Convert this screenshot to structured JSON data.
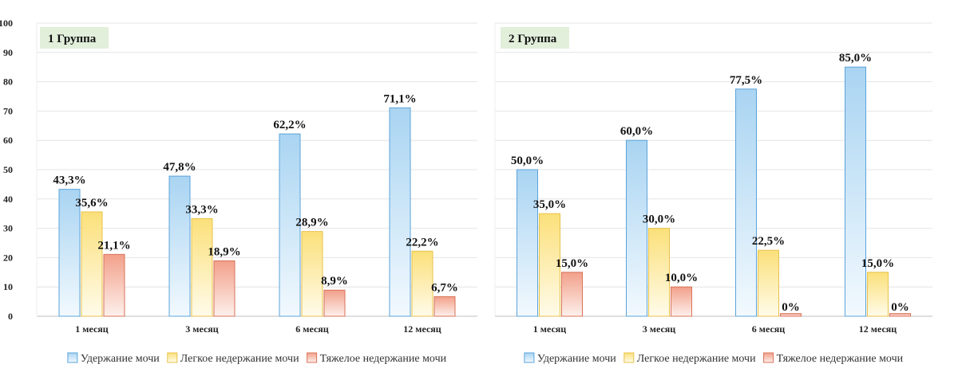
{
  "chart_data": [
    {
      "type": "bar",
      "title": "1 Группа",
      "categories": [
        "1 месяц",
        "3 месяц",
        "6 месяц",
        "12 месяц"
      ],
      "series": [
        {
          "name": "Удержание мочи",
          "values": [
            43.3,
            47.8,
            62.2,
            71.1
          ],
          "labels": [
            "43,3%",
            "47,8%",
            "62,2%",
            "71,1%"
          ]
        },
        {
          "name": "Легкое недержание мочи",
          "values": [
            35.6,
            33.3,
            28.9,
            22.2
          ],
          "labels": [
            "35,6%",
            "33,3%",
            "28,9%",
            "22,2%"
          ]
        },
        {
          "name": "Тяжелое недержание мочи",
          "values": [
            21.1,
            18.9,
            8.9,
            6.7
          ],
          "labels": [
            "21,1%",
            "18,9%",
            "8,9%",
            "6,7%"
          ]
        }
      ],
      "ylim": [
        0,
        100
      ],
      "yticks": [
        "0",
        "10",
        "20",
        "30",
        "40",
        "50",
        "60",
        "70",
        "80",
        "90",
        "100"
      ],
      "grid": true,
      "legend": "bottom"
    },
    {
      "type": "bar",
      "title": "2 Группа",
      "categories": [
        "1 месяц",
        "3 месяц",
        "6 месяц",
        "12 месяц"
      ],
      "series": [
        {
          "name": "Удержание мочи",
          "values": [
            50.0,
            60.0,
            77.5,
            85.0
          ],
          "labels": [
            "50,0%",
            "60,0%",
            "77,5%",
            "85,0%"
          ]
        },
        {
          "name": "Легкое недержание мочи",
          "values": [
            35.0,
            30.0,
            22.5,
            15.0
          ],
          "labels": [
            "35,0%",
            "30,0%",
            "22,5%",
            "15,0%"
          ]
        },
        {
          "name": "Тяжелое недержание мочи",
          "values": [
            15.0,
            10.0,
            0,
            0
          ],
          "labels": [
            "15,0%",
            "10,0%",
            "0%",
            "0%"
          ]
        }
      ],
      "ylim": [
        0,
        100
      ],
      "grid": true,
      "legend": "bottom"
    }
  ],
  "colors": {
    "series": [
      {
        "stroke": "#5ba3d9",
        "top": "#a9d4f2",
        "bottom": "#f2f9fe"
      },
      {
        "stroke": "#e8c24a",
        "top": "#fbe07a",
        "bottom": "#fffbea"
      },
      {
        "stroke": "#d9735a",
        "top": "#f2a08a",
        "bottom": "#fdf0ec"
      }
    ],
    "title_bg": "#e2efdb",
    "grid": "#e4e4e4",
    "axis": "#bfbfbf"
  }
}
